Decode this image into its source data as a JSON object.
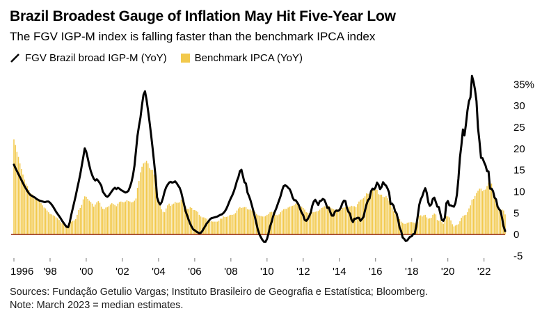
{
  "header": {
    "title": "Brazil Broadest Gauge of Inflation May Hit Five-Year Low",
    "subtitle": "The FGV IGP-M index is falling faster than the benchmark IPCA index"
  },
  "legend": {
    "items": [
      {
        "label": "FGV Brazil broad IGP-M (YoY)",
        "marker": "black-diagonal-line"
      },
      {
        "label": "Benchmark IPCA (YoY)",
        "marker": "yellow-square"
      }
    ]
  },
  "footer": {
    "sources": "Sources: Fundação Getulio Vargas; Instituto Brasileiro de Geografia e Estatística; Bloomberg.",
    "note": "Note: March 2023 = median estimates."
  },
  "chart_data": {
    "type": "line+bar",
    "x_unit": "month",
    "x_range": [
      "1996-01",
      "2023-03"
    ],
    "ylim": [
      -5,
      37.5
    ],
    "y_ticks": [
      35,
      30,
      25,
      20,
      15,
      10,
      5,
      0,
      -5
    ],
    "y_tick_labels": [
      "35%",
      "30",
      "25",
      "20",
      "15",
      "10",
      "5",
      "0",
      "-5"
    ],
    "x_ticks": [
      {
        "label": "1996",
        "month_index": 0
      },
      {
        "label": "'98",
        "month_index": 24
      },
      {
        "label": "'00",
        "month_index": 48
      },
      {
        "label": "'02",
        "month_index": 72
      },
      {
        "label": "'04",
        "month_index": 96
      },
      {
        "label": "'06",
        "month_index": 120
      },
      {
        "label": "'08",
        "month_index": 144
      },
      {
        "label": "'10",
        "month_index": 168
      },
      {
        "label": "'12",
        "month_index": 192
      },
      {
        "label": "'14",
        "month_index": 216
      },
      {
        "label": "'16",
        "month_index": 240
      },
      {
        "label": "'18",
        "month_index": 264
      },
      {
        "label": "'20",
        "month_index": 288
      },
      {
        "label": "'22",
        "month_index": 312
      }
    ],
    "zero_line_color": "#993016",
    "series": [
      {
        "name": "FGV Brazil broad IGP-M (YoY)",
        "type": "line",
        "color": "#000000",
        "values": [
          16.3,
          15.5,
          14.8,
          14.1,
          13.4,
          12.7,
          12.0,
          11.3,
          10.7,
          10.1,
          9.6,
          9.2,
          9.0,
          8.8,
          8.6,
          8.3,
          8.1,
          7.9,
          7.8,
          7.7,
          7.6,
          7.6,
          7.7,
          7.7,
          7.4,
          7.0,
          6.5,
          5.9,
          5.3,
          4.8,
          4.3,
          3.8,
          3.2,
          2.7,
          2.2,
          1.8,
          1.7,
          2.8,
          4.5,
          6.0,
          7.5,
          9.0,
          10.7,
          12.3,
          14.0,
          16.0,
          18.0,
          20.1,
          19.3,
          17.8,
          16.2,
          14.8,
          13.8,
          13.0,
          12.6,
          12.9,
          12.5,
          12.0,
          11.4,
          10.0,
          9.5,
          9.0,
          8.8,
          9.1,
          9.6,
          10.1,
          10.6,
          10.9,
          10.6,
          10.9,
          10.7,
          10.4,
          10.2,
          10.0,
          9.8,
          9.9,
          10.2,
          11.1,
          12.2,
          13.8,
          16.0,
          19.5,
          23.0,
          25.3,
          27.3,
          30.2,
          32.6,
          33.4,
          31.5,
          29.0,
          26.3,
          23.4,
          20.3,
          17.0,
          13.5,
          8.7,
          7.6,
          7.0,
          7.5,
          8.6,
          10.0,
          11.0,
          11.6,
          12.1,
          12.3,
          12.1,
          12.2,
          12.4,
          12.0,
          11.4,
          10.9,
          9.9,
          8.4,
          6.9,
          5.4,
          4.4,
          3.4,
          2.5,
          1.8,
          1.2,
          1.0,
          0.7,
          0.5,
          0.3,
          0.4,
          0.8,
          1.4,
          2.0,
          2.6,
          3.0,
          3.5,
          3.8,
          3.9,
          4.0,
          4.1,
          4.2,
          4.4,
          4.6,
          4.7,
          5.0,
          5.4,
          6.0,
          6.8,
          7.7,
          8.5,
          9.2,
          10.1,
          11.2,
          12.5,
          13.4,
          14.8,
          15.1,
          13.6,
          12.2,
          11.9,
          9.8,
          9.0,
          8.0,
          6.7,
          5.4,
          4.0,
          2.5,
          1.0,
          0.0,
          -0.7,
          -1.3,
          -1.7,
          -1.7,
          -1.0,
          0.3,
          1.9,
          2.9,
          4.2,
          5.2,
          6.0,
          7.0,
          8.0,
          9.0,
          10.3,
          11.3,
          11.5,
          11.3,
          10.9,
          10.6,
          9.8,
          8.6,
          8.0,
          8.0,
          7.5,
          6.9,
          5.9,
          5.1,
          4.5,
          3.4,
          3.2,
          3.6,
          4.3,
          5.1,
          6.7,
          7.7,
          8.1,
          7.5,
          6.9,
          7.8,
          7.9,
          8.3,
          8.1,
          7.3,
          6.2,
          6.3,
          5.2,
          4.4,
          4.4,
          5.3,
          5.6,
          5.5,
          5.7,
          6.3,
          7.3,
          7.9,
          7.8,
          6.2,
          5.3,
          4.9,
          3.5,
          2.9,
          3.7,
          3.7,
          3.9,
          3.9,
          3.2,
          3.6,
          4.1,
          5.6,
          7.0,
          8.0,
          8.4,
          10.1,
          10.7,
          10.5,
          11.0,
          12.1,
          11.6,
          10.6,
          11.1,
          12.2,
          11.7,
          11.4,
          10.7,
          9.8,
          7.1,
          7.2,
          6.7,
          5.4,
          4.9,
          3.4,
          1.6,
          0.8,
          -0.7,
          -1.0,
          -1.5,
          -1.4,
          -0.9,
          -0.5,
          -0.4,
          0.1,
          0.2,
          1.9,
          4.3,
          6.9,
          8.2,
          8.9,
          10.0,
          10.8,
          9.7,
          7.5,
          6.7,
          7.0,
          8.3,
          8.6,
          7.6,
          6.5,
          6.4,
          4.9,
          3.4,
          3.2,
          3.9,
          7.3,
          7.8,
          6.8,
          6.8,
          6.6,
          6.5,
          7.3,
          9.3,
          13.0,
          17.9,
          20.9,
          24.5,
          23.1,
          25.7,
          28.9,
          31.1,
          32.0,
          37.0,
          35.7,
          33.8,
          31.1,
          24.9,
          21.7,
          17.9,
          17.8,
          16.9,
          16.1,
          14.8,
          14.7,
          10.7,
          10.7,
          10.1,
          8.6,
          8.2,
          6.5,
          5.9,
          5.5,
          3.8,
          1.9,
          0.8
        ]
      },
      {
        "name": "Benchmark IPCA (YoY)",
        "type": "bar",
        "color": "#f2c94c",
        "values": [
          22.2,
          20.9,
          19.3,
          18.1,
          16.6,
          15.3,
          14.0,
          12.8,
          11.9,
          11.3,
          10.4,
          9.6,
          9.4,
          8.8,
          8.7,
          8.4,
          8.2,
          7.8,
          7.3,
          6.8,
          6.3,
          6.1,
          5.6,
          5.2,
          4.8,
          4.7,
          4.5,
          4.3,
          4.0,
          3.8,
          3.4,
          2.9,
          2.6,
          2.4,
          2.0,
          1.7,
          1.7,
          2.2,
          3.0,
          3.2,
          3.3,
          3.6,
          4.6,
          5.7,
          6.2,
          6.9,
          8.2,
          8.9,
          8.8,
          8.3,
          7.9,
          7.6,
          7.2,
          6.5,
          7.0,
          7.5,
          7.8,
          7.4,
          6.5,
          6.0,
          5.9,
          6.3,
          6.4,
          6.6,
          7.0,
          7.3,
          7.1,
          6.9,
          6.6,
          7.2,
          7.6,
          7.7,
          7.6,
          7.5,
          7.7,
          8.0,
          7.8,
          7.7,
          7.5,
          7.6,
          7.9,
          8.4,
          10.9,
          12.5,
          14.5,
          15.8,
          16.6,
          16.8,
          17.2,
          16.6,
          15.5,
          15.1,
          15.1,
          14.0,
          11.0,
          9.3,
          7.7,
          6.7,
          5.9,
          5.3,
          5.2,
          6.1,
          6.8,
          7.2,
          6.7,
          7.0,
          7.2,
          7.6,
          7.4,
          7.4,
          7.5,
          8.1,
          8.0,
          7.3,
          6.6,
          6.0,
          6.0,
          6.4,
          6.2,
          5.7,
          5.7,
          5.5,
          5.3,
          4.6,
          4.2,
          4.0,
          4.0,
          3.8,
          3.7,
          3.3,
          3.0,
          3.1,
          3.0,
          3.0,
          3.0,
          3.0,
          3.2,
          3.7,
          3.7,
          4.2,
          4.1,
          4.1,
          4.2,
          4.5,
          4.6,
          4.6,
          4.7,
          5.0,
          5.6,
          6.1,
          6.4,
          6.2,
          6.3,
          6.4,
          6.4,
          5.9,
          5.8,
          5.9,
          5.6,
          5.5,
          5.2,
          4.8,
          4.5,
          4.4,
          4.3,
          4.2,
          4.2,
          4.3,
          4.6,
          4.8,
          5.2,
          5.3,
          5.2,
          4.8,
          4.6,
          4.5,
          4.7,
          5.2,
          5.6,
          5.9,
          6.0,
          6.0,
          6.3,
          6.5,
          6.6,
          6.7,
          6.9,
          7.2,
          7.3,
          7.0,
          6.6,
          6.5,
          6.2,
          5.8,
          5.2,
          5.1,
          5.0,
          4.9,
          5.2,
          5.2,
          5.3,
          5.4,
          5.5,
          5.8,
          6.2,
          6.3,
          6.6,
          6.5,
          6.5,
          6.7,
          6.3,
          6.1,
          5.9,
          5.8,
          5.8,
          5.9,
          5.6,
          5.7,
          6.2,
          6.3,
          6.4,
          6.5,
          6.5,
          6.5,
          6.7,
          6.6,
          6.6,
          6.4,
          7.1,
          7.7,
          8.1,
          8.2,
          8.5,
          8.9,
          9.6,
          9.5,
          9.5,
          9.9,
          10.5,
          10.7,
          10.7,
          10.4,
          9.4,
          9.3,
          9.3,
          8.8,
          8.7,
          9.0,
          8.5,
          7.9,
          7.0,
          6.3,
          5.4,
          4.8,
          4.6,
          4.1,
          3.6,
          3.0,
          2.7,
          2.5,
          2.5,
          2.7,
          2.8,
          2.9,
          2.9,
          2.8,
          2.7,
          2.8,
          2.9,
          4.4,
          4.5,
          4.2,
          4.5,
          4.6,
          4.0,
          3.7,
          3.8,
          3.9,
          4.6,
          4.9,
          4.7,
          3.4,
          3.2,
          3.4,
          2.9,
          2.5,
          3.3,
          4.3,
          4.2,
          4.0,
          3.3,
          2.4,
          1.9,
          2.1,
          2.3,
          2.4,
          3.1,
          3.9,
          4.3,
          4.5,
          4.6,
          5.2,
          6.1,
          6.8,
          8.1,
          8.3,
          9.0,
          9.7,
          10.2,
          10.7,
          10.7,
          10.1,
          10.4,
          10.5,
          11.3,
          12.1,
          11.7,
          11.9,
          10.1,
          8.7,
          7.2,
          6.5,
          5.9,
          5.8,
          5.8,
          5.6,
          4.7
        ]
      }
    ]
  }
}
